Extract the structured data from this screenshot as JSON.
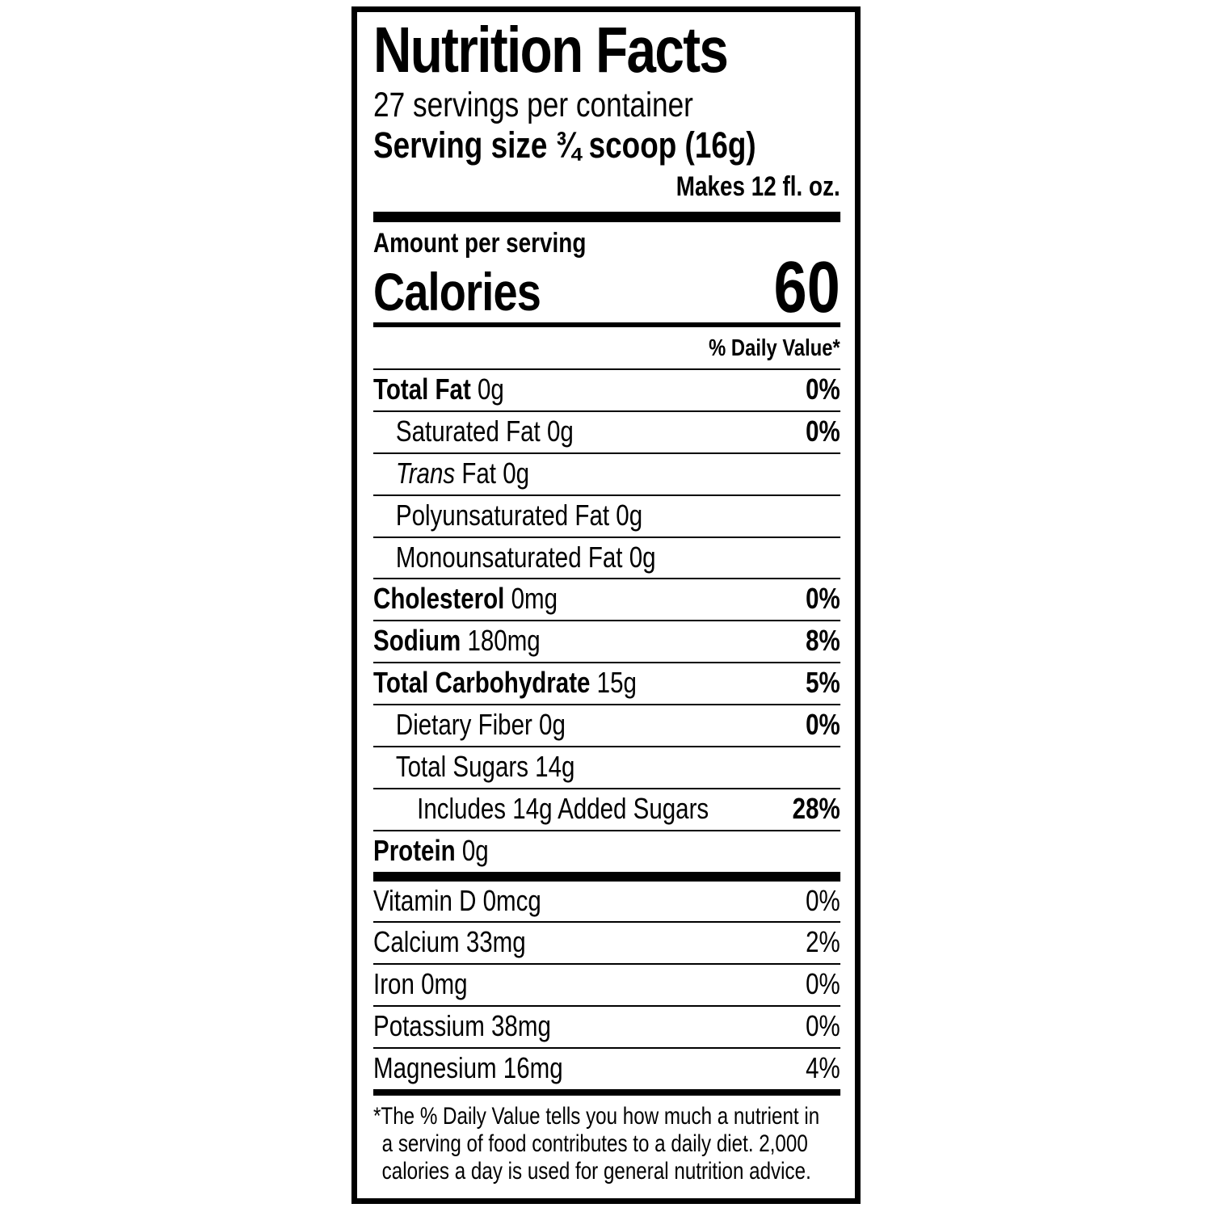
{
  "label": {
    "title": "Nutrition Facts",
    "servings_per_container": "27 servings per container",
    "serving_size": "Serving size ¾ scoop (16g)",
    "makes": "Makes 12 fl. oz.",
    "amount_per_serving": "Amount per serving",
    "calories_label": "Calories",
    "calories_value": "60",
    "daily_value_header": "% Daily Value*",
    "nutrients": [
      {
        "bold": "Total Fat",
        "regular": " 0g",
        "dv": "0%"
      },
      {
        "bold": "",
        "regular": "Saturated Fat 0g",
        "dv": "0%"
      },
      {
        "italic": "Trans",
        "regular": " Fat 0g",
        "dv": ""
      },
      {
        "bold": "",
        "regular": "Polyunsaturated Fat 0g",
        "dv": ""
      },
      {
        "bold": "",
        "regular": "Monounsaturated Fat 0g",
        "dv": ""
      },
      {
        "bold": "Cholesterol",
        "regular": " 0mg",
        "dv": "0%"
      },
      {
        "bold": "Sodium",
        "regular": " 180mg",
        "dv": "8%"
      },
      {
        "bold": "Total Carbohydrate",
        "regular": " 15g",
        "dv": "5%"
      },
      {
        "bold": "",
        "regular": "Dietary Fiber 0g",
        "dv": "0%"
      },
      {
        "bold": "",
        "regular": "Total Sugars 14g",
        "dv": ""
      },
      {
        "bold": "",
        "regular": "Includes 14g Added Sugars",
        "dv": "28%"
      },
      {
        "bold": "Protein",
        "regular": " 0g",
        "dv": ""
      }
    ],
    "vitamins": [
      {
        "name": "Vitamin D 0mcg",
        "dv": "0%"
      },
      {
        "name": "Calcium 33mg",
        "dv": "2%"
      },
      {
        "name": "Iron 0mg",
        "dv": "0%"
      },
      {
        "name": "Potassium 38mg",
        "dv": "0%"
      },
      {
        "name": "Magnesium 16mg",
        "dv": "4%"
      }
    ],
    "footnote": {
      "line1": "*The % Daily Value tells you how much a nutrient in",
      "line2": "a serving of food contributes to a daily diet. 2,000",
      "line3": "calories a day is used for general nutrition advice."
    }
  }
}
